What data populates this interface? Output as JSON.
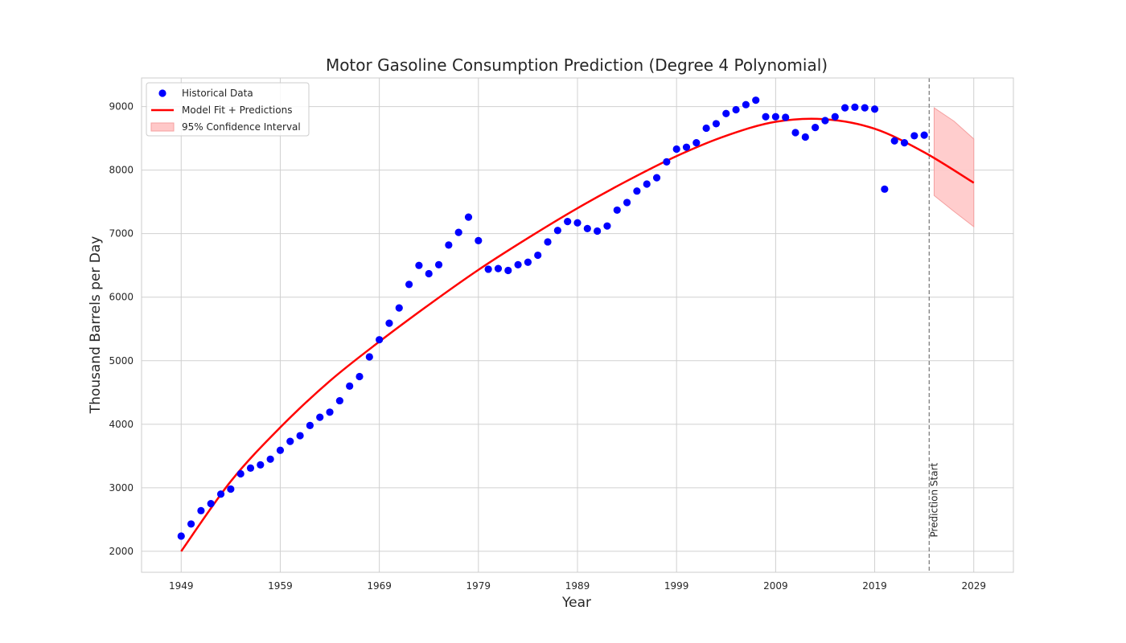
{
  "chart_data": {
    "type": "scatter",
    "title": "Motor Gasoline Consumption Prediction (Degree 4 Polynomial)",
    "xlabel": "Year",
    "ylabel": "Thousand Barrels per Day",
    "xlim": [
      1945,
      2033
    ],
    "ylim": [
      1670,
      9450
    ],
    "xticks": [
      1949,
      1959,
      1969,
      1979,
      1989,
      1999,
      2009,
      2019,
      2029
    ],
    "yticks": [
      2000,
      3000,
      4000,
      5000,
      6000,
      7000,
      8000,
      9000
    ],
    "grid": true,
    "legend_position": "top-left",
    "colors": {
      "scatter": "#0000ff",
      "fit": "#ff0000",
      "ci_fill": "#ffc8c8",
      "ci_edge": "#f5a0a0",
      "vline": "#808080",
      "grid": "#d0d0d0"
    },
    "legend": [
      {
        "label": "Historical Data",
        "kind": "point"
      },
      {
        "label": "Model Fit + Predictions",
        "kind": "line"
      },
      {
        "label": "95% Confidence Interval",
        "kind": "patch"
      }
    ],
    "annotation": {
      "text": "Prediction Start",
      "x": 2024.5
    },
    "series": [
      {
        "name": "Historical Data",
        "type": "scatter",
        "x": [
          1949,
          1950,
          1951,
          1952,
          1953,
          1954,
          1955,
          1956,
          1957,
          1958,
          1959,
          1960,
          1961,
          1962,
          1963,
          1964,
          1965,
          1966,
          1967,
          1968,
          1969,
          1970,
          1971,
          1972,
          1973,
          1974,
          1975,
          1976,
          1977,
          1978,
          1979,
          1980,
          1981,
          1982,
          1983,
          1984,
          1985,
          1986,
          1987,
          1988,
          1989,
          1990,
          1991,
          1992,
          1993,
          1994,
          1995,
          1996,
          1997,
          1998,
          1999,
          2000,
          2001,
          2002,
          2003,
          2004,
          2005,
          2006,
          2007,
          2008,
          2009,
          2010,
          2011,
          2012,
          2013,
          2014,
          2015,
          2016,
          2017,
          2018,
          2019,
          2020,
          2021,
          2022,
          2023,
          2024
        ],
        "y": [
          2240,
          2430,
          2640,
          2750,
          2900,
          2980,
          3220,
          3310,
          3360,
          3450,
          3590,
          3730,
          3820,
          3980,
          4110,
          4190,
          4370,
          4600,
          4750,
          5060,
          5330,
          5590,
          5830,
          6200,
          6500,
          6370,
          6510,
          6820,
          7020,
          7260,
          6890,
          6440,
          6450,
          6420,
          6510,
          6550,
          6660,
          6870,
          7050,
          7190,
          7170,
          7080,
          7040,
          7120,
          7370,
          7490,
          7670,
          7780,
          7880,
          8130,
          8330,
          8360,
          8430,
          8660,
          8730,
          8890,
          8950,
          9030,
          9100,
          8840,
          8840,
          8830,
          8590,
          8520,
          8670,
          8780,
          8840,
          8980,
          8990,
          8980,
          8960,
          7700,
          8460,
          8430,
          8540,
          8550
        ]
      },
      {
        "name": "Model Fit + Predictions",
        "type": "line",
        "x": [
          1949,
          1954,
          1959,
          1964,
          1969,
          1974,
          1979,
          1984,
          1989,
          1994,
          1999,
          2004,
          2009,
          2014,
          2019,
          2024,
          2029
        ],
        "y": [
          2000,
          3100,
          3950,
          4680,
          5300,
          5880,
          6430,
          6930,
          7400,
          7830,
          8220,
          8540,
          8760,
          8800,
          8650,
          8280,
          7800
        ]
      },
      {
        "name": "95% Confidence Interval",
        "type": "band",
        "x": [
          2025,
          2027,
          2029
        ],
        "lower": [
          7600,
          7350,
          7110
        ],
        "upper": [
          8980,
          8770,
          8490
        ]
      }
    ]
  }
}
